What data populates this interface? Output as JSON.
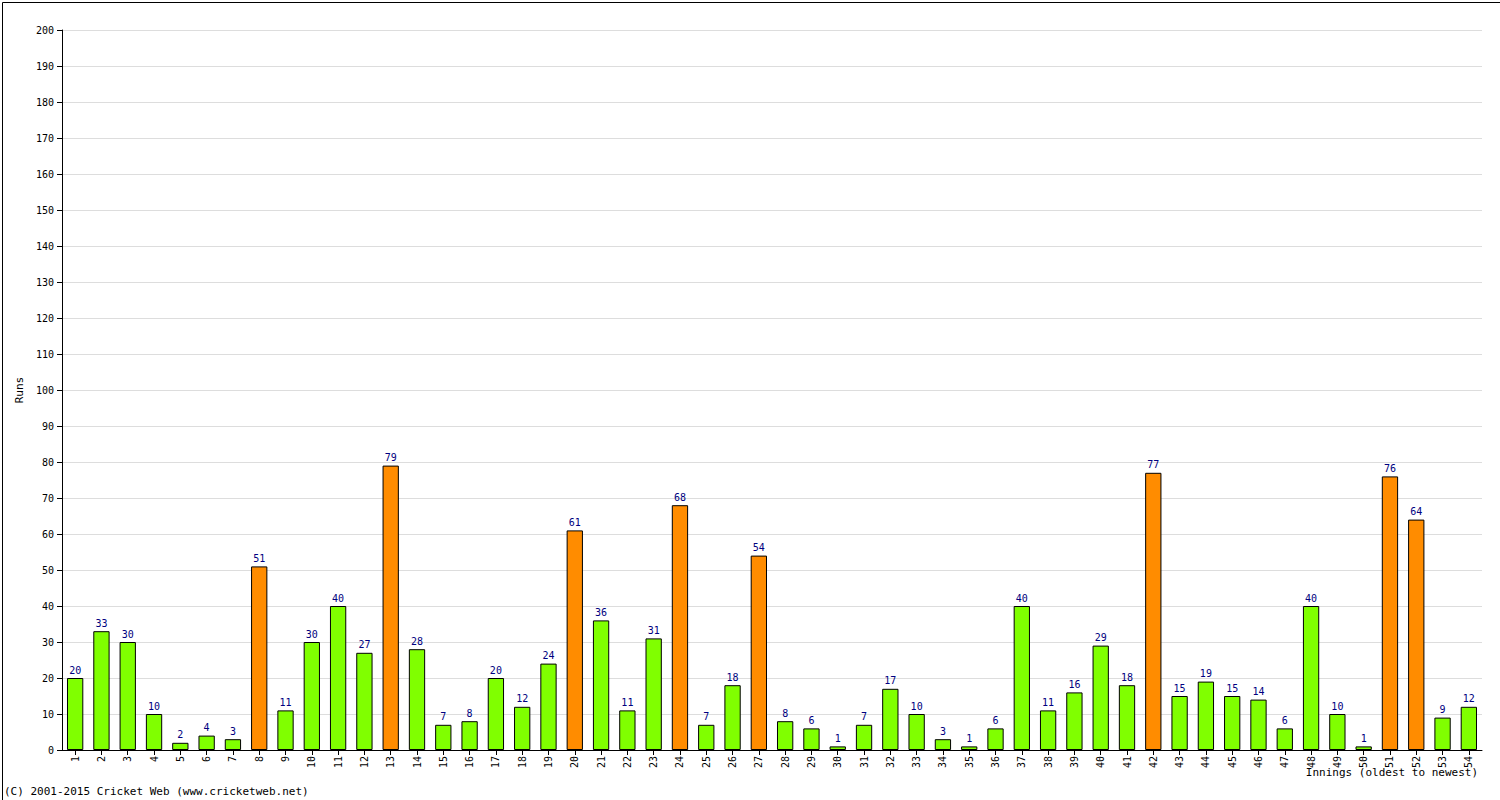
{
  "chart_data": {
    "type": "bar",
    "x_label": "Innings (oldest to newest)",
    "y_label": "Runs",
    "annotations": [
      "(C) 2001-2015 Cricket Web (www.cricketweb.net)"
    ],
    "categories": [
      "1",
      "2",
      "3",
      "4",
      "5",
      "6",
      "7",
      "8",
      "9",
      "10",
      "11",
      "12",
      "13",
      "14",
      "15",
      "16",
      "17",
      "18",
      "19",
      "20",
      "21",
      "22",
      "23",
      "24",
      "25",
      "26",
      "27",
      "28",
      "29",
      "30",
      "31",
      "32",
      "33",
      "34",
      "35",
      "36",
      "37",
      "38",
      "39",
      "40",
      "41",
      "42",
      "43",
      "44",
      "45",
      "46",
      "47",
      "48",
      "49",
      "50",
      "51",
      "52",
      "53",
      "54"
    ],
    "values": [
      20,
      33,
      30,
      10,
      2,
      4,
      3,
      51,
      11,
      30,
      40,
      27,
      79,
      28,
      7,
      8,
      20,
      12,
      24,
      61,
      36,
      11,
      31,
      68,
      7,
      18,
      54,
      8,
      6,
      1,
      7,
      17,
      10,
      3,
      1,
      6,
      40,
      11,
      16,
      29,
      18,
      77,
      15,
      19,
      15,
      14,
      6,
      40,
      10,
      1,
      76,
      64,
      9,
      12
    ],
    "colors": [
      "#80ff00",
      "#80ff00",
      "#80ff00",
      "#80ff00",
      "#80ff00",
      "#80ff00",
      "#80ff00",
      "#ff8c00",
      "#80ff00",
      "#80ff00",
      "#80ff00",
      "#80ff00",
      "#ff8c00",
      "#80ff00",
      "#80ff00",
      "#80ff00",
      "#80ff00",
      "#80ff00",
      "#80ff00",
      "#ff8c00",
      "#80ff00",
      "#80ff00",
      "#80ff00",
      "#ff8c00",
      "#80ff00",
      "#80ff00",
      "#ff8c00",
      "#80ff00",
      "#80ff00",
      "#80ff00",
      "#80ff00",
      "#80ff00",
      "#80ff00",
      "#80ff00",
      "#80ff00",
      "#80ff00",
      "#80ff00",
      "#80ff00",
      "#80ff00",
      "#80ff00",
      "#80ff00",
      "#ff8c00",
      "#80ff00",
      "#80ff00",
      "#80ff00",
      "#80ff00",
      "#80ff00",
      "#80ff00",
      "#80ff00",
      "#80ff00",
      "#ff8c00",
      "#ff8c00",
      "#80ff00",
      "#80ff00"
    ],
    "ylim": [
      0,
      200
    ],
    "yticks": [
      0,
      10,
      20,
      30,
      40,
      50,
      60,
      70,
      80,
      90,
      100,
      110,
      120,
      130,
      140,
      150,
      160,
      170,
      180,
      190,
      200
    ],
    "grid": true,
    "data_labels": true
  }
}
